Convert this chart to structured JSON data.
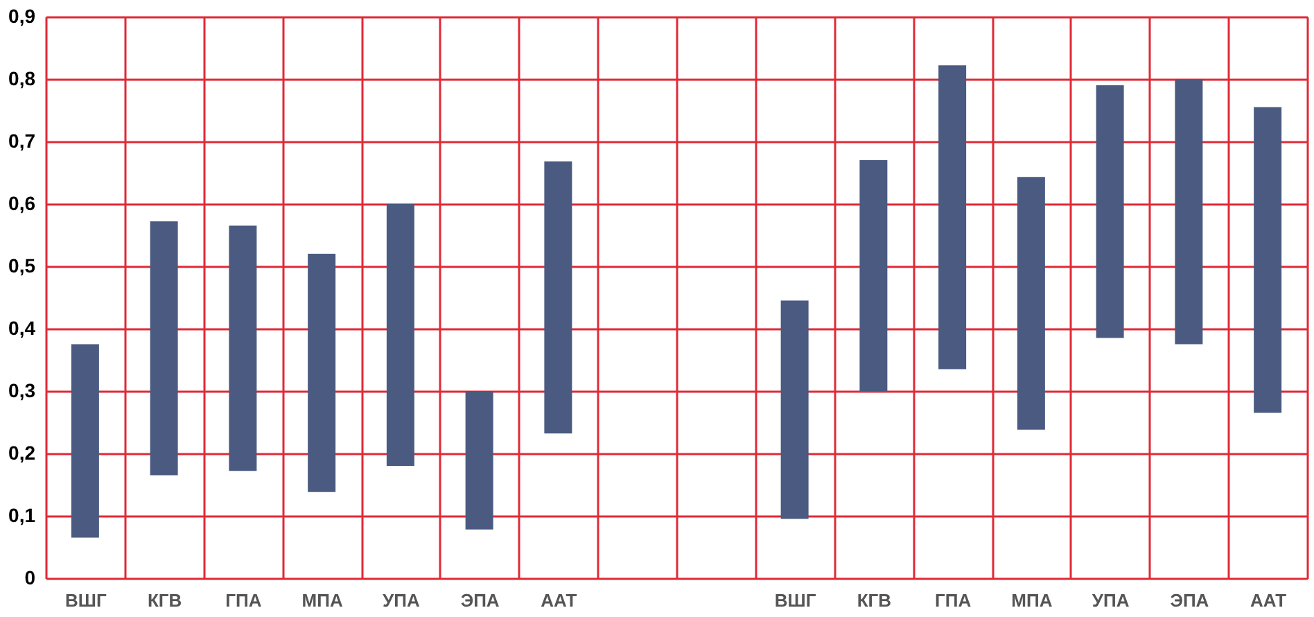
{
  "chart_data": {
    "type": "bar",
    "categories": [
      "ВШГ",
      "КГВ",
      "ГПА",
      "МПА",
      "УПА",
      "ЭПА",
      "ААТ",
      null,
      null,
      "ВШГ",
      "КГВ",
      "ГПА",
      "МПА",
      "УПА",
      "ЭПА",
      "ААТ"
    ],
    "base": [
      0.065,
      0.165,
      0.172,
      0.138,
      0.18,
      0.078,
      0.232,
      null,
      null,
      0.095,
      0.3,
      0.335,
      0.238,
      0.385,
      0.375,
      0.265
    ],
    "values": [
      0.31,
      0.407,
      0.393,
      0.382,
      0.42,
      0.222,
      0.436,
      null,
      null,
      0.35,
      0.37,
      0.487,
      0.405,
      0.405,
      0.425,
      0.49
    ],
    "color": "#4a5a80",
    "ylim": [
      0,
      0.9
    ],
    "yticks": [
      0,
      {
        "value": 0.1,
        "label": "0,1"
      },
      {
        "value": 0.2,
        "label": "0,2"
      },
      {
        "value": 0.3,
        "label": "0,3"
      },
      {
        "value": 0.4,
        "label": "0,4"
      },
      {
        "value": 0.5,
        "label": "0,5"
      },
      {
        "value": 0.6,
        "label": "0,6"
      },
      {
        "value": 0.7,
        "label": "0,7"
      },
      {
        "value": 0.8,
        "label": "0,8"
      },
      {
        "value": 0.9,
        "label": "0,9"
      }
    ],
    "grid": true
  }
}
